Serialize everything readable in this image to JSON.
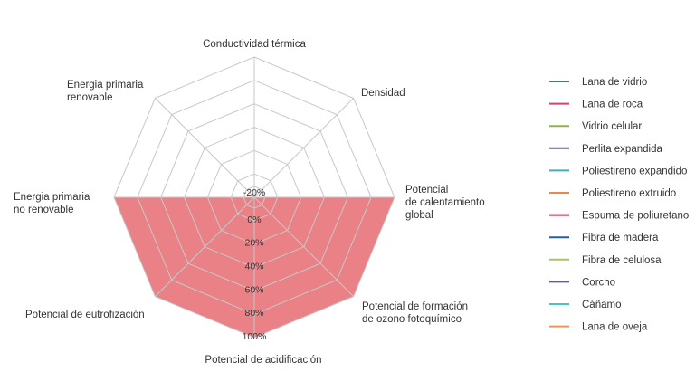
{
  "chart_data": {
    "type": "radar",
    "axes": [
      [
        "Conductividad térmica"
      ],
      [
        "Densidad"
      ],
      [
        "Potencial",
        "de calentamiento",
        "global"
      ],
      [
        "Potencial de formación",
        "de ozono fotoquímico"
      ],
      [
        "Potencial de acidificación"
      ],
      [
        "Potencial de eutrofización"
      ],
      [
        "Energia primaria",
        "no renovable"
      ],
      [
        "Energia primaria",
        "renovable"
      ]
    ],
    "ticks": [
      "-20%",
      "0%",
      "20%",
      "40%",
      "60%",
      "80%",
      "100%"
    ],
    "range": [
      -20,
      100
    ],
    "filled_region": {
      "color": "#e87a80",
      "description_values": [
        null,
        null,
        100,
        100,
        100,
        100,
        100,
        null
      ]
    },
    "legend": [
      {
        "name": "Lana de vidrio",
        "color": "#4a6fa5"
      },
      {
        "name": "Lana de roca",
        "color": "#c9496b"
      },
      {
        "name": "Vidrio celular",
        "color": "#8db34a"
      },
      {
        "name": "Perlita expandida",
        "color": "#6b5e8e"
      },
      {
        "name": "Poliestireno expandido",
        "color": "#49a9c1"
      },
      {
        "name": "Poliestireno extruido",
        "color": "#e8884a"
      },
      {
        "name": "Espuma de poliuretano",
        "color": "#d1223a"
      },
      {
        "name": "Fibra de madera",
        "color": "#2b5d9b"
      },
      {
        "name": "Fibra de celulosa",
        "color": "#a8c46a"
      },
      {
        "name": "Corcho",
        "color": "#6a5b96"
      },
      {
        "name": "Cáñamo",
        "color": "#4ec2bd"
      },
      {
        "name": "Lana de oveja",
        "color": "#f0955a"
      }
    ]
  }
}
